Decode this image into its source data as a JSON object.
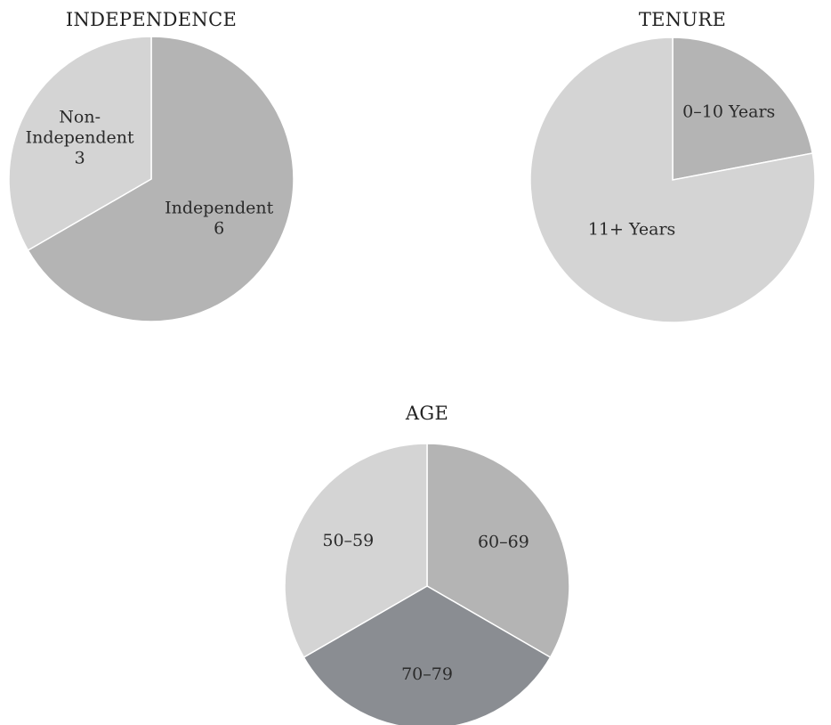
{
  "colors": {
    "light": "#d4d4d4",
    "medium": "#b4b4b4",
    "dark": "#8a8d92",
    "edge": "#ffffff"
  },
  "chart_data": [
    {
      "type": "pie",
      "title": "INDEPENDENCE",
      "slices": [
        {
          "label": [
            "Independent",
            "6"
          ],
          "value": 6,
          "color": "medium"
        },
        {
          "label": [
            "Non-",
            "Independent",
            "3"
          ],
          "value": 3,
          "color": "light"
        }
      ]
    },
    {
      "type": "pie",
      "title": "TENURE",
      "slices": [
        {
          "label": [
            "0–10 Years"
          ],
          "value": 2.2,
          "color": "medium"
        },
        {
          "label": [
            "11+ Years"
          ],
          "value": 7.8,
          "color": "light"
        }
      ]
    },
    {
      "type": "pie",
      "title": "AGE",
      "slices": [
        {
          "label": [
            "60–69"
          ],
          "value": 1,
          "color": "medium"
        },
        {
          "label": [
            "70–79"
          ],
          "value": 1,
          "color": "dark"
        },
        {
          "label": [
            "50–59"
          ],
          "value": 1,
          "color": "light"
        }
      ]
    }
  ]
}
